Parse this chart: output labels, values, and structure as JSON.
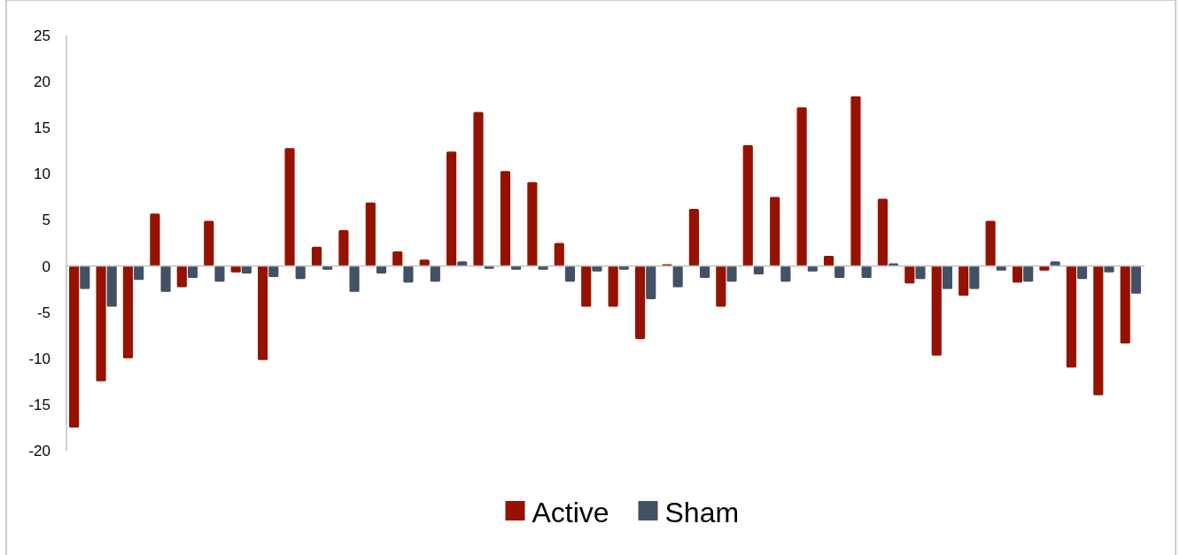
{
  "chart_data": {
    "type": "bar",
    "categories": [
      null,
      null,
      null,
      null,
      null,
      null,
      null,
      null,
      null,
      null,
      null,
      null,
      null,
      null,
      null,
      null,
      null,
      null,
      null,
      null,
      null,
      null,
      null,
      null,
      null,
      null,
      null,
      null,
      null,
      null,
      null,
      null,
      null,
      null,
      null,
      null,
      null,
      null,
      null,
      null
    ],
    "series": [
      {
        "name": "Active",
        "color": "#961200",
        "values": [
          -17.5,
          -12.5,
          -10,
          5.7,
          -2.3,
          4.9,
          -0.7,
          -10.2,
          12.8,
          2.1,
          3.9,
          6.9,
          1.6,
          0.7,
          12.4,
          16.7,
          10.3,
          9.1,
          2.5,
          -4.4,
          -4.4,
          -7.9,
          0.2,
          6.2,
          -4.4,
          13.1,
          7.5,
          17.2,
          1.1,
          18.4,
          7.3,
          -1.9,
          -9.7,
          -3.2,
          4.9,
          -1.8,
          -0.5,
          -11,
          -14,
          -8.4
        ]
      },
      {
        "name": "Sham",
        "color": "#425164",
        "values": [
          -2.5,
          -4.4,
          -1.5,
          -2.8,
          -1.3,
          -1.7,
          -0.8,
          -1.2,
          -1.4,
          -0.4,
          -2.8,
          -0.8,
          -1.8,
          -1.7,
          0.5,
          -0.3,
          -0.4,
          -0.4,
          -1.7,
          -0.6,
          -0.4,
          -3.6,
          -2.3,
          -1.3,
          -1.7,
          -0.9,
          -1.7,
          -0.6,
          -1.3,
          -1.3,
          0.3,
          -1.4,
          -2.5,
          -2.5,
          -0.5,
          -1.7,
          0.5,
          -1.4,
          -0.7,
          -3
        ]
      }
    ],
    "ylim": [
      -20,
      25
    ],
    "yticks": [
      -20,
      -15,
      -10,
      -5,
      0,
      5,
      10,
      15,
      20,
      25
    ],
    "tick_labels": "y",
    "legend": "bottom"
  }
}
